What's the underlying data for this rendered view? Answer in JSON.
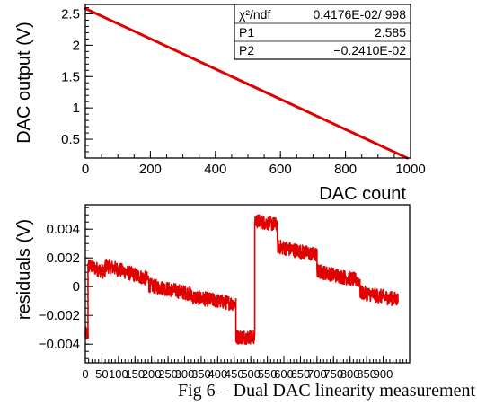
{
  "caption": "Fig 6 – Dual DAC linearity measurement",
  "colors": {
    "data": "#e00000",
    "axes": "#000000"
  },
  "chart_data": [
    {
      "type": "line",
      "xlabel": "DAC count",
      "ylabel": "DAC output (V)",
      "xlim": [
        0,
        1000
      ],
      "ylim": [
        0.2,
        2.65
      ],
      "xticks": [
        0,
        200,
        400,
        600,
        800,
        1000
      ],
      "yticks": [
        0.5,
        1,
        1.5,
        2,
        2.5
      ],
      "ytick_labels": [
        "0.5",
        "1",
        "1.5",
        "2",
        "2.5"
      ],
      "fit": {
        "p1": 2.585,
        "p2": -0.00241,
        "x_start": 0,
        "x_end": 990
      },
      "stats": [
        {
          "label": "χ²/ndf",
          "value": "0.4176E-02/  998"
        },
        {
          "label": "P1",
          "value": "2.585"
        },
        {
          "label": "P2",
          "value": "−0.2410E-02"
        }
      ],
      "grid": false
    },
    {
      "type": "line",
      "xlabel": "",
      "ylabel": "residuals (V)",
      "xlim": [
        0,
        980
      ],
      "ylim": [
        -0.0053,
        0.0057
      ],
      "xticks": [
        0,
        50,
        100,
        150,
        200,
        250,
        300,
        350,
        400,
        450,
        500,
        550,
        600,
        650,
        700,
        750,
        800,
        850,
        900
      ],
      "yticks": [
        -0.004,
        -0.002,
        0,
        0.002,
        0.004
      ],
      "ytick_labels": [
        "−0.004",
        "−0.002",
        "0",
        "0.002",
        "0.004"
      ],
      "segments": [
        {
          "x": [
            0,
            8
          ],
          "y": [
            -0.0033,
            -0.0033
          ]
        },
        {
          "x": [
            8,
            60
          ],
          "y": [
            0.0015,
            0.001
          ]
        },
        {
          "x": [
            60,
            192
          ],
          "y": [
            0.0015,
            0.0005
          ]
        },
        {
          "x": [
            192,
            320
          ],
          "y": [
            0.0001,
            -0.0005
          ]
        },
        {
          "x": [
            320,
            455
          ],
          "y": [
            -0.0007,
            -0.0012
          ]
        },
        {
          "x": [
            455,
            512
          ],
          "y": [
            -0.0035,
            -0.0035
          ]
        },
        {
          "x": [
            512,
            580
          ],
          "y": [
            0.0046,
            0.0043
          ]
        },
        {
          "x": [
            580,
            700
          ],
          "y": [
            0.0028,
            0.0022
          ]
        },
        {
          "x": [
            700,
            830
          ],
          "y": [
            0.0011,
            0.0004
          ]
        },
        {
          "x": [
            830,
            945
          ],
          "y": [
            -0.0004,
            -0.0009
          ]
        }
      ],
      "noise_amplitude": 0.0005,
      "grid": false
    }
  ]
}
